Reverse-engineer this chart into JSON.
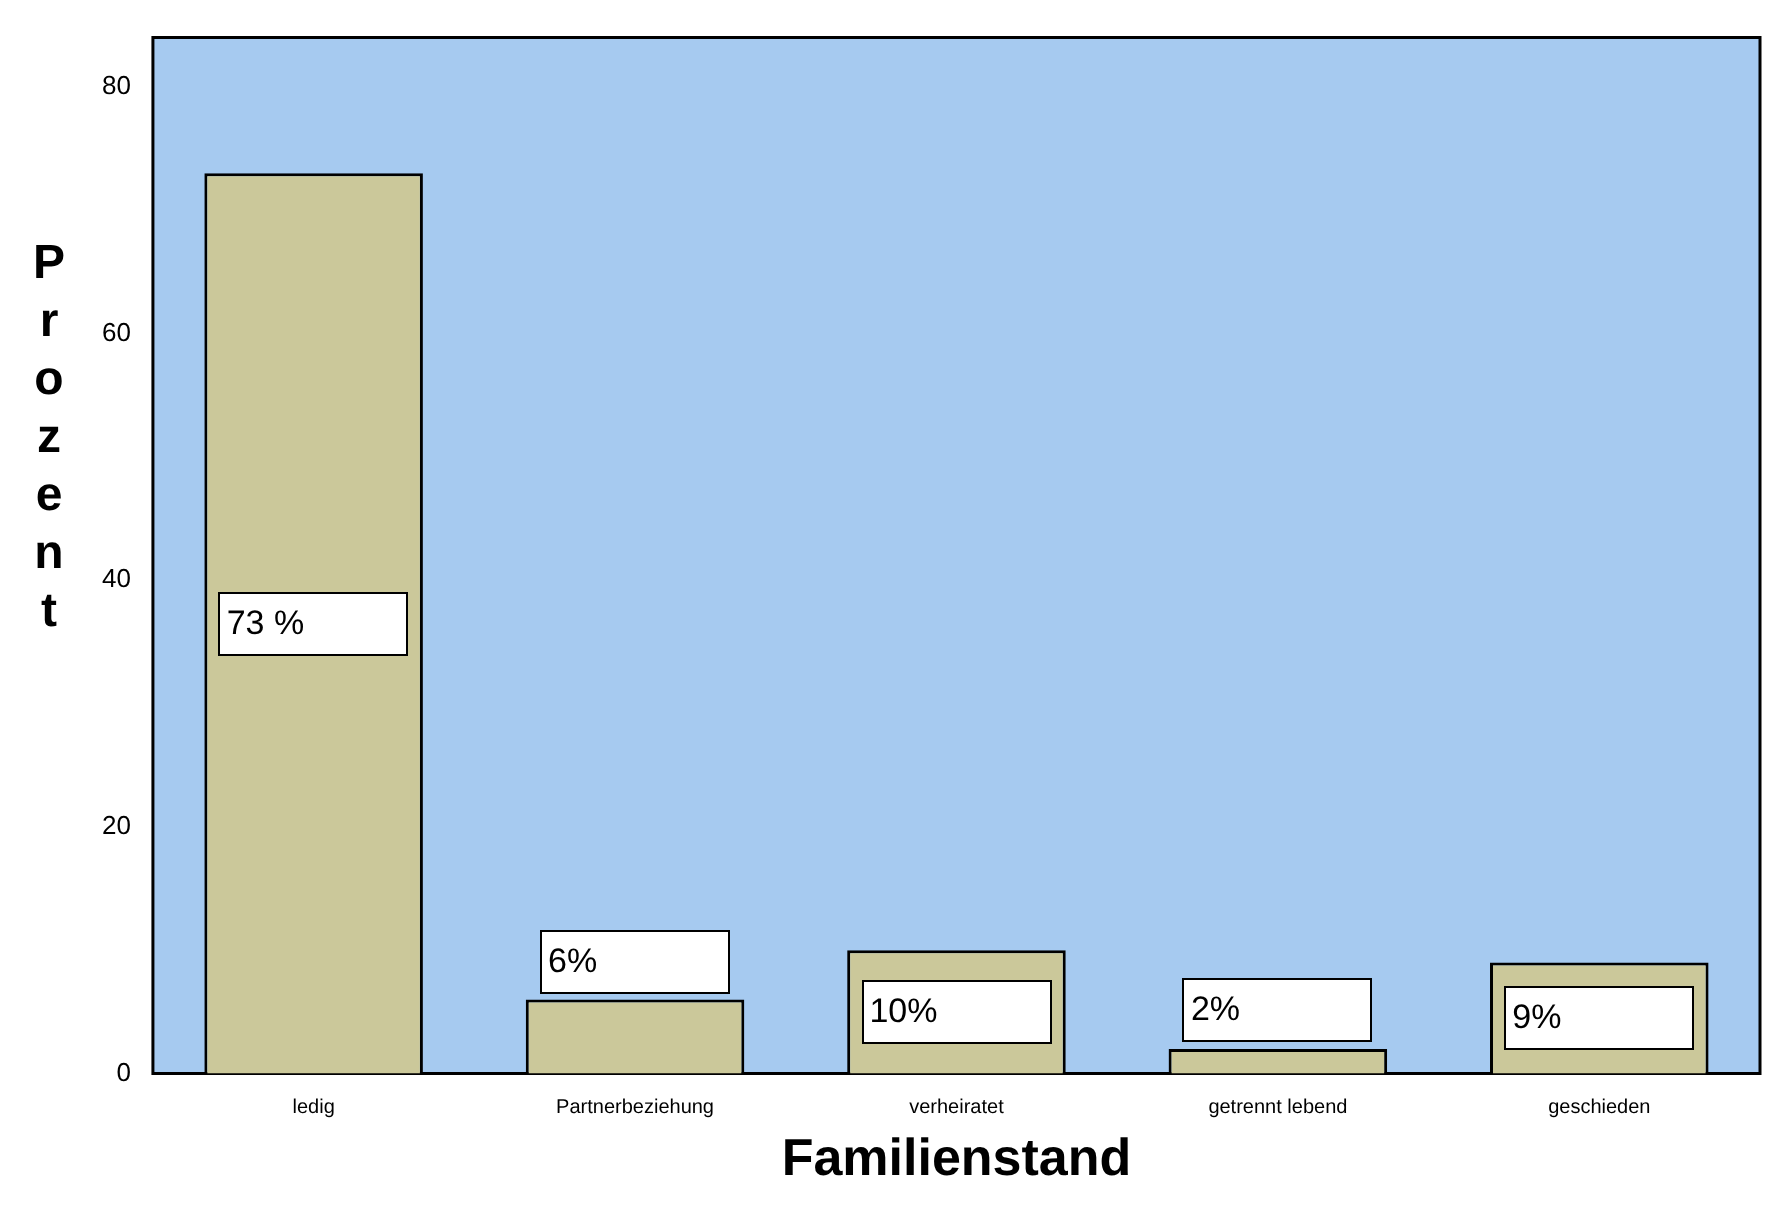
{
  "chart_data": {
    "type": "bar",
    "xlabel": "Familienstand",
    "ylabel": "Prozent",
    "categories": [
      "ledig",
      "Partnerbeziehung",
      "verheiratet",
      "getrennt lebend",
      "geschieden"
    ],
    "values": [
      73,
      6,
      10,
      2,
      9
    ],
    "value_labels": [
      "73 %",
      "6%",
      "10%",
      "2%",
      "9%"
    ],
    "color": "#cbc89a",
    "ylim": [
      0,
      84
    ],
    "yticks": [
      0,
      20,
      40,
      60,
      80
    ],
    "grid": false,
    "legend": false
  }
}
